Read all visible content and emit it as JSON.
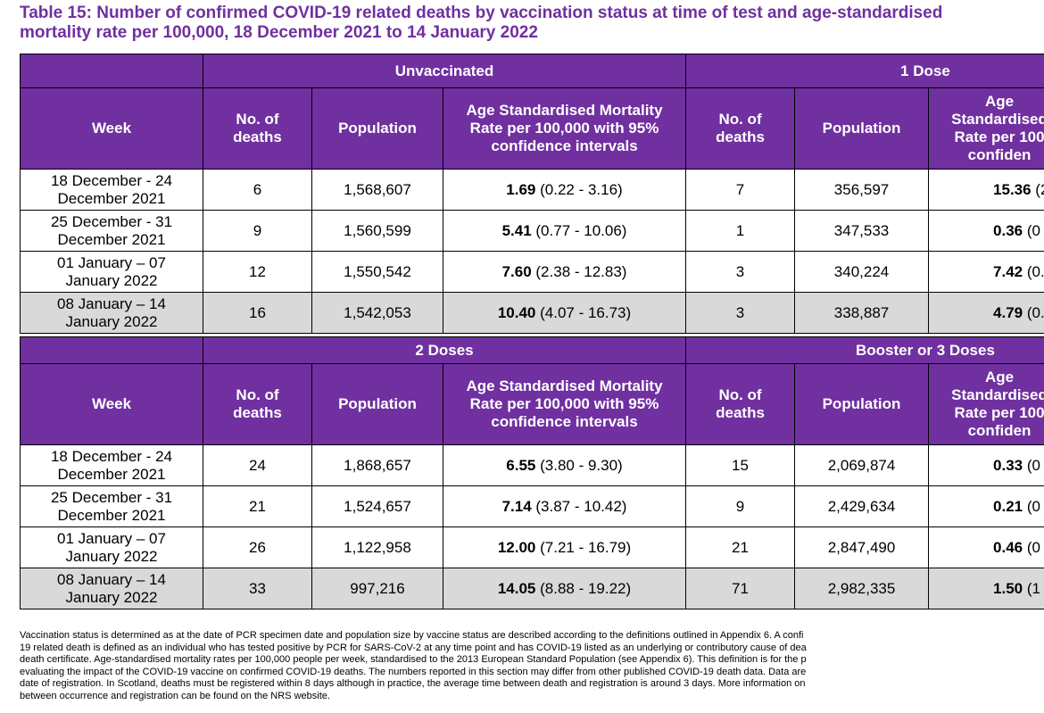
{
  "title": {
    "line1": "Table 15: Number of confirmed COVID-19 related deaths by vaccination status at time of test and age-standardised",
    "line2": "mortality rate per 100,000, 18 December 2021 to 14 January 2022"
  },
  "colors": {
    "header_bg": "#7030A0",
    "highlight_row": "#d9d9d9"
  },
  "column_headers": {
    "week": "Week",
    "deaths": "No. of deaths",
    "population": "Population",
    "rate": "Age Standardised Mortality Rate per 100,000 with 95% confidence intervals",
    "rate_cut": "Age Standardised Rate per 100 confiden"
  },
  "block1": {
    "group_left": "Unvaccinated",
    "group_right": "1 Dose",
    "rows": [
      {
        "week": "18 December - 24 December 2021",
        "deaths": "6",
        "population": "1,568,607",
        "rate": "1.69",
        "ci": " (0.22 - 3.16)",
        "deaths2": "7",
        "population2": "356,597",
        "rate2": "15.36",
        "ci2": " (2"
      },
      {
        "week": "25 December - 31 December 2021",
        "deaths": "9",
        "population": "1,560,599",
        "rate": "5.41",
        "ci": " (0.77 - 10.06)",
        "deaths2": "1",
        "population2": "347,533",
        "rate2": "0.36",
        "ci2": " (0"
      },
      {
        "week": "01 January – 07 January 2022",
        "deaths": "12",
        "population": "1,550,542",
        "rate": "7.60",
        "ci": " (2.38 - 12.83)",
        "deaths2": "3",
        "population2": "340,224",
        "rate2": "7.42",
        "ci2": " (0."
      },
      {
        "week": "08 January – 14 January 2022",
        "deaths": "16",
        "population": "1,542,053",
        "rate": "10.40",
        "ci": " (4.07 - 16.73)",
        "deaths2": "3",
        "population2": "338,887",
        "rate2": "4.79",
        "ci2": " (0."
      }
    ]
  },
  "block2": {
    "group_left": "2 Doses",
    "group_right": "Booster or 3 Doses",
    "rows": [
      {
        "week": "18 December - 24 December 2021",
        "deaths": "24",
        "population": "1,868,657",
        "rate": "6.55",
        "ci": " (3.80 - 9.30)",
        "deaths2": "15",
        "population2": "2,069,874",
        "rate2": "0.33",
        "ci2": " (0"
      },
      {
        "week": "25 December - 31 December 2021",
        "deaths": "21",
        "population": "1,524,657",
        "rate": "7.14",
        "ci": " (3.87 - 10.42)",
        "deaths2": "9",
        "population2": "2,429,634",
        "rate2": "0.21",
        "ci2": " (0"
      },
      {
        "week": "01 January – 07 January 2022",
        "deaths": "26",
        "population": "1,122,958",
        "rate": "12.00",
        "ci": " (7.21 - 16.79)",
        "deaths2": "21",
        "population2": "2,847,490",
        "rate2": "0.46",
        "ci2": " (0"
      },
      {
        "week": "08 January – 14 January 2022",
        "deaths": "33",
        "population": "997,216",
        "rate": "14.05",
        "ci": " (8.88 - 19.22)",
        "deaths2": "71",
        "population2": "2,982,335",
        "rate2": "1.50",
        "ci2": " (1"
      }
    ]
  },
  "footnote": [
    "Vaccination status is determined as at the date of PCR specimen date and population size by vaccine status are described according to the definitions outlined in Appendix 6. A confi",
    "19 related death is defined as an individual who has tested positive by PCR for SARS-CoV-2 at any time point and has COVID-19 listed as an underlying or contributory cause of dea",
    "death certificate. Age-standardised mortality rates per 100,000 people per week, standardised to the 2013 European Standard Population (see Appendix 6). This definition is for the p",
    "evaluating the impact of the COVID-19 vaccine on confirmed COVID-19 deaths. The numbers reported in this section may differ from other published COVID-19 death data. Data are",
    "date of registration. In Scotland, deaths must be registered within 8 days although in practice, the average time between death and registration is around 3 days. More information on",
    "between occurrence and registration can be found on the NRS website."
  ]
}
